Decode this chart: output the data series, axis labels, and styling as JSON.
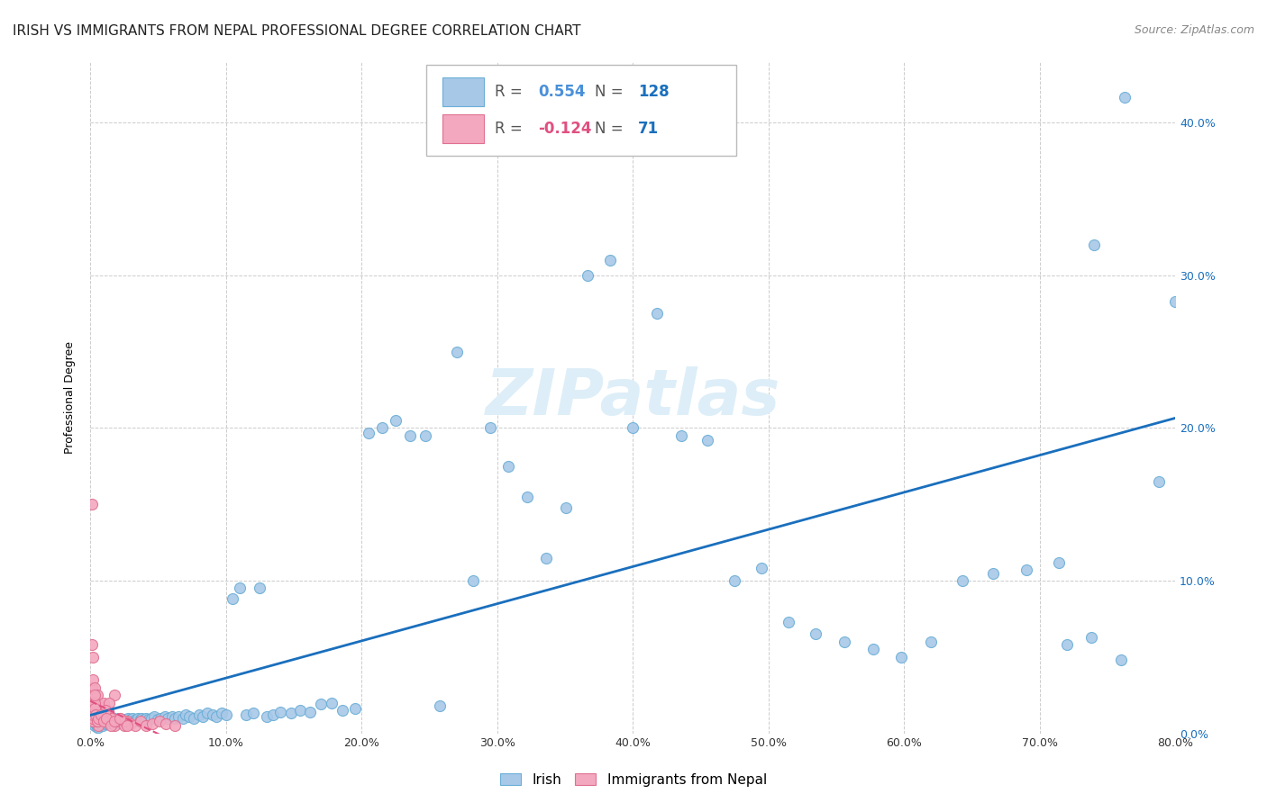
{
  "title": "IRISH VS IMMIGRANTS FROM NEPAL PROFESSIONAL DEGREE CORRELATION CHART",
  "source": "Source: ZipAtlas.com",
  "ylabel": "Professional Degree",
  "xlim": [
    0.0,
    0.8
  ],
  "ylim": [
    0.0,
    0.44
  ],
  "irish_R": 0.554,
  "irish_N": 128,
  "nepal_R": -0.124,
  "nepal_N": 71,
  "irish_color": "#a8c8e8",
  "irish_edge_color": "#6aaed6",
  "nepal_color": "#f4a8c0",
  "nepal_edge_color": "#e07090",
  "irish_line_color": "#1a6fbd",
  "nepal_line_color": "#e05080",
  "watermark_color": "#ddeef8",
  "watermark_text": "ZIPatlas",
  "legend_R_color_irish": "#4a90d9",
  "legend_R_color_nepal": "#e05080",
  "legend_N_color": "#1a6fbd",
  "background_color": "#ffffff",
  "grid_color": "#cccccc",
  "title_fontsize": 11,
  "axis_label_fontsize": 9,
  "tick_fontsize": 9,
  "legend_fontsize": 11,
  "watermark_fontsize": 52,
  "source_fontsize": 9,
  "irish_x": [
    0.002,
    0.003,
    0.003,
    0.004,
    0.004,
    0.005,
    0.005,
    0.005,
    0.005,
    0.006,
    0.006,
    0.006,
    0.006,
    0.007,
    0.007,
    0.008,
    0.008,
    0.008,
    0.009,
    0.009,
    0.01,
    0.01,
    0.011,
    0.011,
    0.012,
    0.012,
    0.013,
    0.013,
    0.014,
    0.015,
    0.015,
    0.016,
    0.017,
    0.018,
    0.019,
    0.02,
    0.021,
    0.022,
    0.023,
    0.024,
    0.025,
    0.026,
    0.027,
    0.028,
    0.029,
    0.03,
    0.031,
    0.032,
    0.034,
    0.035,
    0.037,
    0.038,
    0.04,
    0.041,
    0.043,
    0.045,
    0.047,
    0.05,
    0.052,
    0.055,
    0.057,
    0.06,
    0.062,
    0.065,
    0.068,
    0.07,
    0.073,
    0.076,
    0.08,
    0.083,
    0.086,
    0.09,
    0.093,
    0.097,
    0.1,
    0.105,
    0.11,
    0.115,
    0.12,
    0.125,
    0.13,
    0.135,
    0.14,
    0.148,
    0.155,
    0.162,
    0.17,
    0.178,
    0.186,
    0.195,
    0.205,
    0.215,
    0.225,
    0.236,
    0.247,
    0.258,
    0.27,
    0.282,
    0.295,
    0.308,
    0.322,
    0.336,
    0.351,
    0.367,
    0.383,
    0.4,
    0.418,
    0.436,
    0.455,
    0.475,
    0.495,
    0.515,
    0.535,
    0.556,
    0.577,
    0.598,
    0.62,
    0.643,
    0.666,
    0.69,
    0.714,
    0.738,
    0.763,
    0.788,
    0.8,
    0.76,
    0.74,
    0.72
  ],
  "irish_y": [
    0.008,
    0.005,
    0.01,
    0.006,
    0.008,
    0.004,
    0.007,
    0.012,
    0.006,
    0.005,
    0.008,
    0.01,
    0.004,
    0.007,
    0.009,
    0.006,
    0.008,
    0.011,
    0.005,
    0.009,
    0.007,
    0.01,
    0.006,
    0.008,
    0.007,
    0.009,
    0.008,
    0.01,
    0.007,
    0.008,
    0.009,
    0.007,
    0.008,
    0.01,
    0.007,
    0.009,
    0.008,
    0.007,
    0.009,
    0.008,
    0.009,
    0.008,
    0.009,
    0.01,
    0.008,
    0.009,
    0.01,
    0.008,
    0.009,
    0.01,
    0.009,
    0.01,
    0.009,
    0.01,
    0.009,
    0.01,
    0.011,
    0.009,
    0.01,
    0.011,
    0.01,
    0.011,
    0.01,
    0.011,
    0.01,
    0.012,
    0.011,
    0.01,
    0.012,
    0.011,
    0.013,
    0.012,
    0.011,
    0.013,
    0.012,
    0.088,
    0.095,
    0.012,
    0.013,
    0.095,
    0.011,
    0.012,
    0.014,
    0.013,
    0.015,
    0.014,
    0.019,
    0.02,
    0.015,
    0.016,
    0.197,
    0.2,
    0.205,
    0.195,
    0.195,
    0.018,
    0.25,
    0.1,
    0.2,
    0.175,
    0.155,
    0.115,
    0.148,
    0.3,
    0.31,
    0.2,
    0.275,
    0.195,
    0.192,
    0.1,
    0.108,
    0.073,
    0.065,
    0.06,
    0.055,
    0.05,
    0.06,
    0.1,
    0.105,
    0.107,
    0.112,
    0.063,
    0.417,
    0.165,
    0.283,
    0.048,
    0.32,
    0.058
  ],
  "nepal_x": [
    0.001,
    0.001,
    0.002,
    0.002,
    0.002,
    0.003,
    0.003,
    0.003,
    0.003,
    0.004,
    0.004,
    0.004,
    0.005,
    0.005,
    0.005,
    0.005,
    0.006,
    0.006,
    0.007,
    0.007,
    0.008,
    0.008,
    0.009,
    0.01,
    0.01,
    0.011,
    0.012,
    0.013,
    0.014,
    0.015,
    0.016,
    0.018,
    0.02,
    0.022,
    0.025,
    0.027,
    0.03,
    0.033,
    0.037,
    0.041,
    0.046,
    0.051,
    0.056,
    0.062,
    0.025,
    0.018,
    0.014,
    0.011,
    0.009,
    0.007,
    0.006,
    0.005,
    0.004,
    0.004,
    0.003,
    0.003,
    0.002,
    0.002,
    0.002,
    0.001,
    0.003,
    0.004,
    0.005,
    0.006,
    0.008,
    0.01,
    0.012,
    0.015,
    0.018,
    0.022,
    0.027
  ],
  "nepal_y": [
    0.058,
    0.03,
    0.035,
    0.025,
    0.05,
    0.01,
    0.015,
    0.02,
    0.03,
    0.008,
    0.012,
    0.018,
    0.01,
    0.015,
    0.02,
    0.025,
    0.008,
    0.012,
    0.01,
    0.015,
    0.012,
    0.018,
    0.01,
    0.015,
    0.02,
    0.012,
    0.01,
    0.015,
    0.012,
    0.008,
    0.01,
    0.005,
    0.008,
    0.01,
    0.005,
    0.008,
    0.006,
    0.005,
    0.008,
    0.005,
    0.006,
    0.008,
    0.006,
    0.005,
    0.008,
    0.025,
    0.02,
    0.015,
    0.01,
    0.008,
    0.005,
    0.008,
    0.01,
    0.015,
    0.02,
    0.025,
    0.008,
    0.01,
    0.012,
    0.15,
    0.016,
    0.012,
    0.008,
    0.01,
    0.012,
    0.008,
    0.01,
    0.005,
    0.008,
    0.01,
    0.005
  ]
}
